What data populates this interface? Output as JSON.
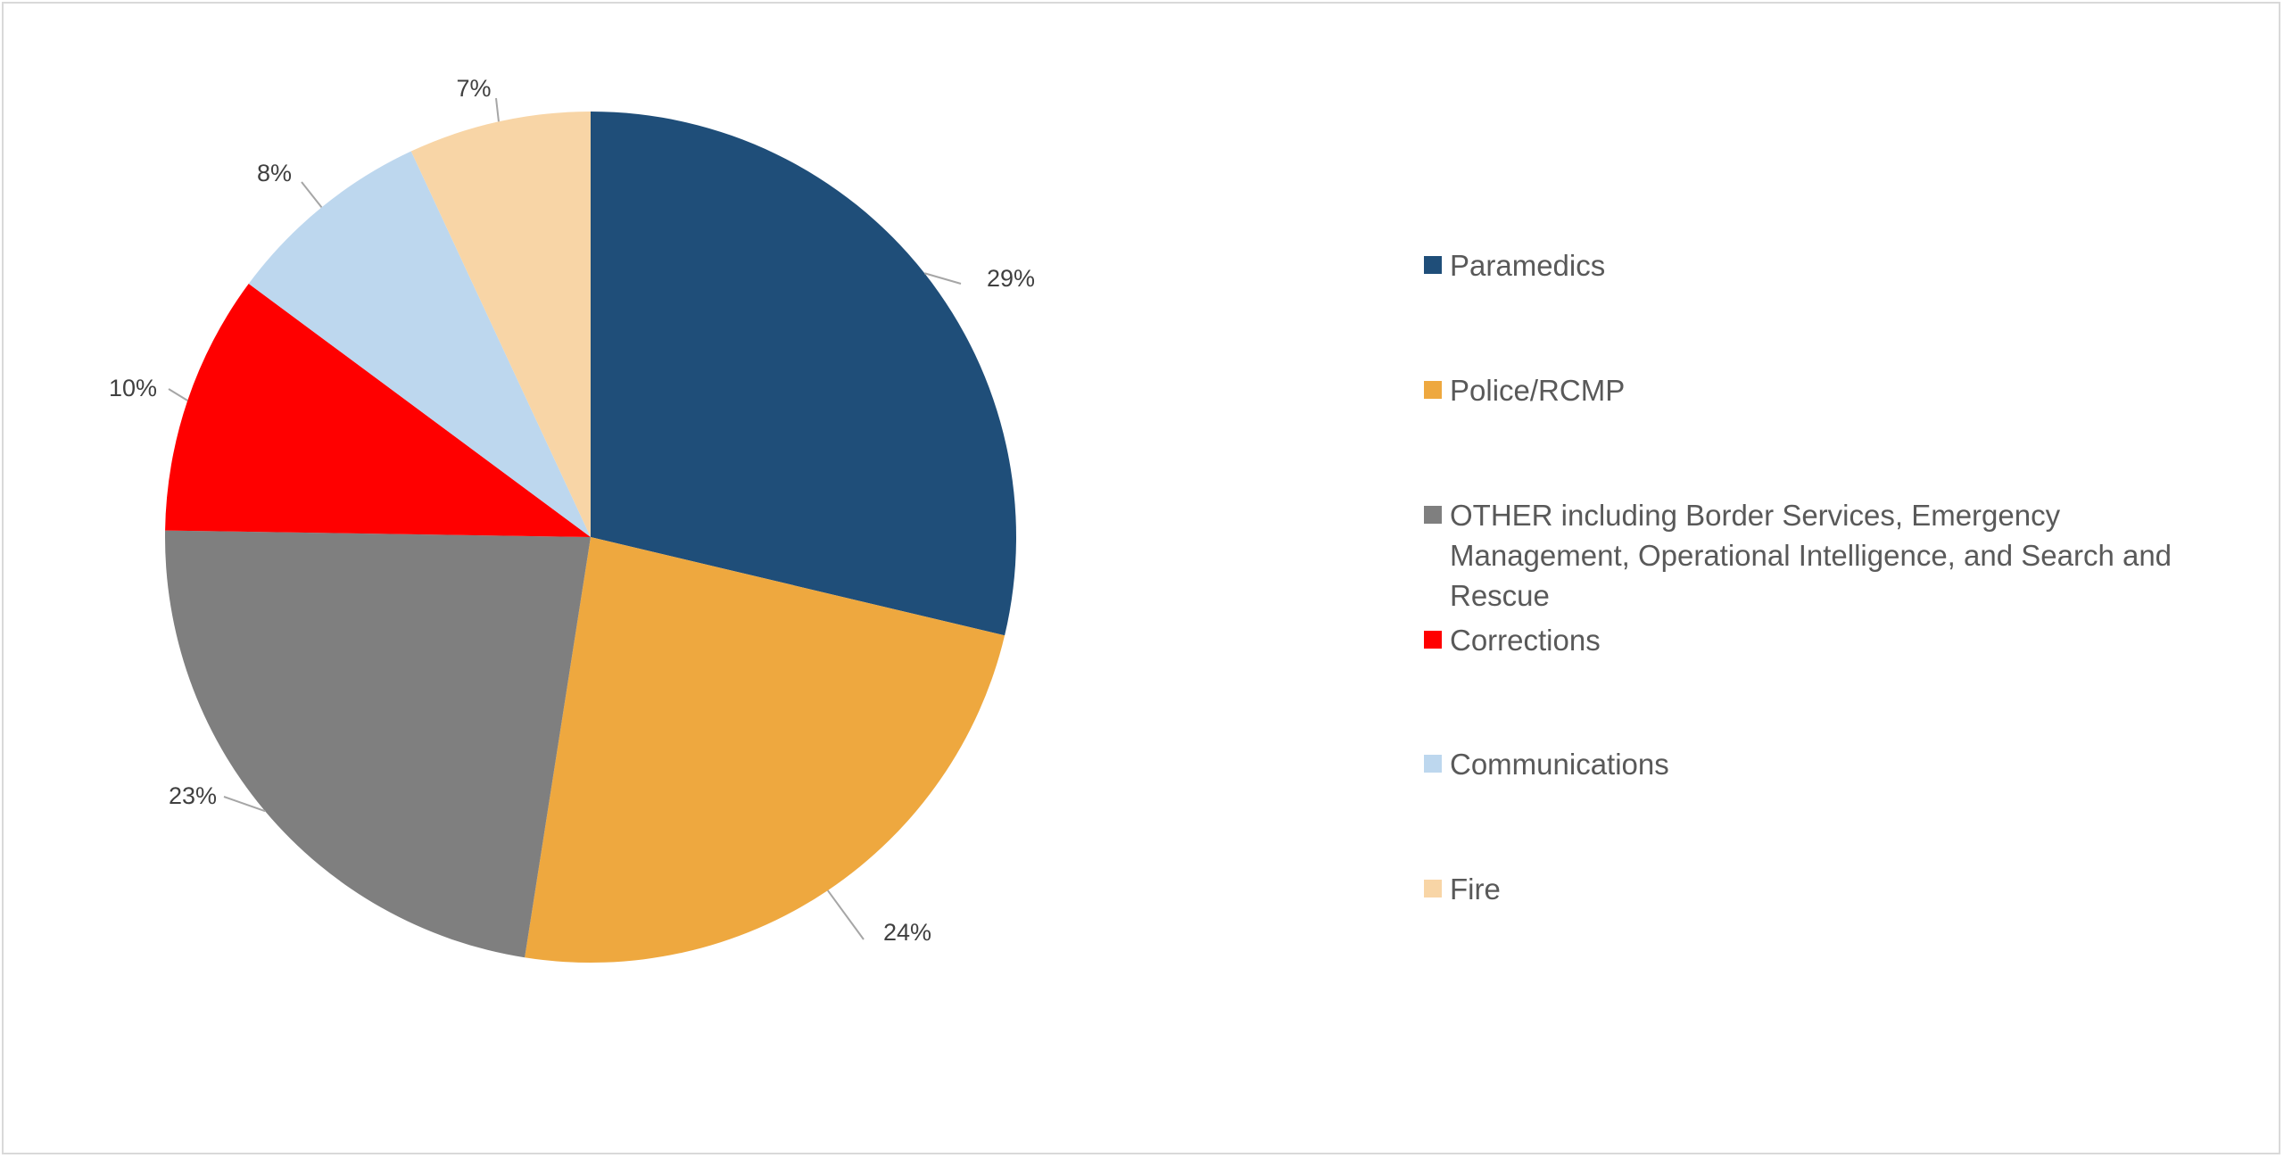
{
  "chart_data": {
    "type": "pie",
    "slices": [
      {
        "label": "Paramedics",
        "value": 29,
        "display": "29%",
        "color": "#1f4e79"
      },
      {
        "label": "Police/RCMP",
        "value": 24,
        "display": "24%",
        "color": "#eea83f"
      },
      {
        "label": "OTHER including Border Services, Emergency Management, Operational Intelligence, and Search and Rescue",
        "value": 23,
        "display": "23%",
        "color": "#7f7f7f"
      },
      {
        "label": "Corrections",
        "value": 10,
        "display": "10%",
        "color": "#ff0000"
      },
      {
        "label": "Communications",
        "value": 8,
        "display": "8%",
        "color": "#bdd7ee"
      },
      {
        "label": "Fire",
        "value": 7,
        "display": "7%",
        "color": "#f8d5a6"
      }
    ],
    "start_angle": "12 o'clock",
    "direction": "clockwise",
    "legend_position": "right",
    "data_labels": "outside-with-leader-lines"
  }
}
